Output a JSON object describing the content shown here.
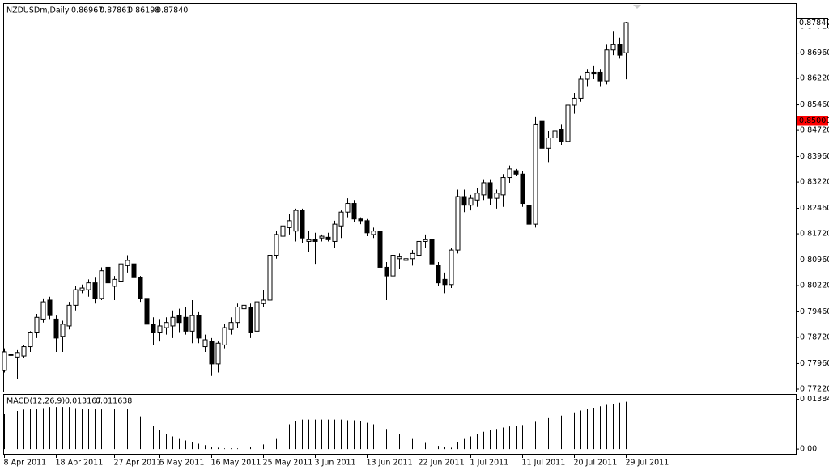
{
  "header": {
    "symbol": "NZDUSDm,Daily",
    "values": [
      "0.86967",
      "0.87861",
      "0.86198",
      "0.87840"
    ]
  },
  "chart_data": [
    {
      "type": "candlestick",
      "categories": [
        "8 Apr 2011",
        null,
        null,
        null,
        null,
        null,
        null,
        null,
        "18 Apr 2011",
        null,
        null,
        null,
        null,
        null,
        null,
        null,
        null,
        "27 Apr 2011",
        null,
        null,
        null,
        null,
        null,
        null,
        "6 May 2011",
        null,
        null,
        null,
        null,
        null,
        null,
        null,
        "16 May 2011",
        null,
        null,
        null,
        null,
        null,
        null,
        null,
        "25 May 2011",
        null,
        null,
        null,
        null,
        null,
        null,
        null,
        "3 Jun 2011",
        null,
        null,
        null,
        null,
        null,
        null,
        null,
        "13 Jun 2011",
        null,
        null,
        null,
        null,
        null,
        null,
        null,
        "22 Jun 2011",
        null,
        null,
        null,
        null,
        null,
        null,
        null,
        "1 Jul 2011",
        null,
        null,
        null,
        null,
        null,
        null,
        null,
        "11 Jul 2011",
        null,
        null,
        null,
        null,
        null,
        null,
        null,
        "20 Jul 2011",
        null,
        null,
        null,
        null,
        null,
        null,
        null,
        "29 Jul 2011"
      ],
      "open": [
        0.7776,
        0.782,
        0.7815,
        0.7818,
        0.7845,
        0.7885,
        0.7925,
        0.798,
        0.7925,
        0.7875,
        0.7905,
        0.7965,
        0.8008,
        0.801,
        0.803,
        0.7985,
        0.8075,
        0.802,
        0.8035,
        0.808,
        0.8085,
        0.8045,
        0.7985,
        0.791,
        0.7885,
        0.79,
        0.7905,
        0.7935,
        0.793,
        0.789,
        0.7935,
        0.7845,
        0.786,
        0.7795,
        0.785,
        0.7895,
        0.7915,
        0.7955,
        0.796,
        0.789,
        0.797,
        0.798,
        0.811,
        0.8165,
        0.819,
        0.818,
        0.824,
        0.815,
        0.8155,
        0.816,
        0.8162,
        0.815,
        0.8195,
        0.8235,
        0.826,
        0.8215,
        0.821,
        0.817,
        0.818,
        0.8075,
        0.805,
        0.81,
        0.8095,
        0.81,
        0.811,
        0.815,
        0.8155,
        0.808,
        0.804,
        0.8025,
        0.8125,
        0.828,
        0.8255,
        0.827,
        0.8285,
        0.832,
        0.8275,
        0.8285,
        0.8335,
        0.8355,
        0.8345,
        0.8255,
        0.82,
        0.85,
        0.842,
        0.845,
        0.8475,
        0.844,
        0.8545,
        0.8565,
        0.862,
        0.864,
        0.864,
        0.8615,
        0.8705,
        0.872,
        0.86967
      ],
      "high": [
        0.784,
        0.7826,
        0.7835,
        0.785,
        0.789,
        0.794,
        0.7985,
        0.799,
        0.7935,
        0.792,
        0.7975,
        0.802,
        0.8025,
        0.804,
        0.8045,
        0.8075,
        0.8095,
        0.805,
        0.8095,
        0.811,
        0.8095,
        0.805,
        0.7995,
        0.793,
        0.7925,
        0.793,
        0.795,
        0.7955,
        0.796,
        0.798,
        0.7945,
        0.788,
        0.787,
        0.786,
        0.791,
        0.793,
        0.797,
        0.7975,
        0.797,
        0.799,
        0.801,
        0.812,
        0.818,
        0.821,
        0.823,
        0.8245,
        0.8245,
        0.818,
        0.8175,
        0.817,
        0.8175,
        0.821,
        0.824,
        0.8275,
        0.827,
        0.822,
        0.8215,
        0.819,
        0.8185,
        0.809,
        0.8125,
        0.8115,
        0.811,
        0.8125,
        0.816,
        0.817,
        0.819,
        0.809,
        0.806,
        0.813,
        0.83,
        0.83,
        0.8285,
        0.8305,
        0.833,
        0.833,
        0.83,
        0.8345,
        0.837,
        0.836,
        0.8355,
        0.826,
        0.851,
        0.8515,
        0.847,
        0.8485,
        0.849,
        0.856,
        0.858,
        0.863,
        0.865,
        0.866,
        0.865,
        0.872,
        0.876,
        0.874,
        0.87861
      ],
      "low": [
        0.777,
        0.7812,
        0.7752,
        0.7812,
        0.783,
        0.787,
        0.7915,
        0.7925,
        0.783,
        0.783,
        0.7895,
        0.795,
        0.8,
        0.799,
        0.797,
        0.798,
        0.802,
        0.798,
        0.801,
        0.806,
        0.8035,
        0.7975,
        0.79,
        0.785,
        0.786,
        0.788,
        0.787,
        0.7885,
        0.788,
        0.7855,
        0.7855,
        0.783,
        0.776,
        0.777,
        0.784,
        0.788,
        0.79,
        0.792,
        0.787,
        0.788,
        0.796,
        0.7975,
        0.81,
        0.814,
        0.817,
        0.815,
        0.8145,
        0.812,
        0.8085,
        0.815,
        0.815,
        0.813,
        0.816,
        0.822,
        0.8205,
        0.82,
        0.8165,
        0.816,
        0.806,
        0.798,
        0.803,
        0.807,
        0.808,
        0.808,
        0.805,
        0.813,
        0.807,
        0.802,
        0.8,
        0.8015,
        0.8115,
        0.8235,
        0.824,
        0.825,
        0.827,
        0.8255,
        0.8245,
        0.825,
        0.832,
        0.834,
        0.825,
        0.812,
        0.819,
        0.84,
        0.838,
        0.842,
        0.843,
        0.843,
        0.852,
        0.8555,
        0.86,
        0.862,
        0.86,
        0.8605,
        0.869,
        0.868,
        0.86198
      ],
      "close": [
        0.783,
        0.7822,
        0.7828,
        0.7845,
        0.7885,
        0.793,
        0.7975,
        0.7935,
        0.787,
        0.791,
        0.7965,
        0.801,
        0.8015,
        0.803,
        0.7985,
        0.8065,
        0.803,
        0.804,
        0.8085,
        0.8095,
        0.8045,
        0.7985,
        0.791,
        0.7885,
        0.7905,
        0.7915,
        0.793,
        0.7915,
        0.789,
        0.7935,
        0.787,
        0.7865,
        0.7795,
        0.7855,
        0.79,
        0.7915,
        0.796,
        0.7965,
        0.7885,
        0.7975,
        0.798,
        0.811,
        0.817,
        0.8195,
        0.821,
        0.824,
        0.816,
        0.8155,
        0.815,
        0.8165,
        0.8155,
        0.82,
        0.8235,
        0.826,
        0.8215,
        0.821,
        0.8175,
        0.818,
        0.8075,
        0.805,
        0.811,
        0.8105,
        0.81,
        0.8115,
        0.815,
        0.8155,
        0.8085,
        0.803,
        0.8025,
        0.8125,
        0.828,
        0.8255,
        0.8275,
        0.829,
        0.832,
        0.8275,
        0.829,
        0.8335,
        0.836,
        0.8345,
        0.826,
        0.82,
        0.849,
        0.842,
        0.845,
        0.847,
        0.844,
        0.8545,
        0.8565,
        0.862,
        0.864,
        0.8635,
        0.8615,
        0.8705,
        0.872,
        0.869,
        0.8784
      ],
      "up_color": "#ffffff",
      "down_color": "#000000",
      "ylim": [
        0.7715,
        0.8838
      ],
      "yticks": [
        {
          "value": 0.8772,
          "label": "0.87720"
        },
        {
          "value": 0.8696,
          "label": "0.86960"
        },
        {
          "value": 0.8622,
          "label": "0.86220"
        },
        {
          "value": 0.8546,
          "label": "0.85460"
        },
        {
          "value": 0.8472,
          "label": "0.84720"
        },
        {
          "value": 0.8396,
          "label": "0.83960"
        },
        {
          "value": 0.8322,
          "label": "0.83220"
        },
        {
          "value": 0.8246,
          "label": "0.82460"
        },
        {
          "value": 0.8172,
          "label": "0.81720"
        },
        {
          "value": 0.8096,
          "label": "0.80960"
        },
        {
          "value": 0.8022,
          "label": "0.80220"
        },
        {
          "value": 0.7946,
          "label": "0.79460"
        },
        {
          "value": 0.7872,
          "label": "0.78720"
        },
        {
          "value": 0.7796,
          "label": "0.77960"
        },
        {
          "value": 0.7722,
          "label": "0.77220"
        }
      ],
      "current_price": {
        "value": 0.8784,
        "label": "0.87840"
      },
      "hline": {
        "value": 0.85,
        "label": "0.85000",
        "color": "#ff0000"
      }
    },
    {
      "type": "bar",
      "title": "MACD(12,26,9)",
      "readouts": [
        "0.013167",
        "0.011638"
      ],
      "color": "#000000",
      "values": [
        0.0097,
        0.0102,
        0.0106,
        0.011,
        0.0112,
        0.0112,
        0.0114,
        0.0117,
        0.0117,
        0.0117,
        0.0117,
        0.0114,
        0.0112,
        0.0112,
        0.0112,
        0.0112,
        0.0112,
        0.0112,
        0.0112,
        0.0112,
        0.0102,
        0.0091,
        0.0078,
        0.0065,
        0.0052,
        0.0043,
        0.0035,
        0.0028,
        0.0024,
        0.0019,
        0.0015,
        0.0011,
        0.0006,
        0.0004,
        0.0002,
        0.0002,
        0.0002,
        0.0004,
        0.0006,
        0.0009,
        0.0013,
        0.0019,
        0.0028,
        0.0058,
        0.0069,
        0.0078,
        0.0082,
        0.0082,
        0.0082,
        0.0082,
        0.0082,
        0.0082,
        0.0082,
        0.008,
        0.008,
        0.0078,
        0.0073,
        0.0069,
        0.0065,
        0.0056,
        0.0048,
        0.0041,
        0.0035,
        0.0028,
        0.0022,
        0.0017,
        0.0013,
        0.0009,
        0.0006,
        0.0004,
        0.0019,
        0.0028,
        0.0035,
        0.0041,
        0.0048,
        0.0052,
        0.0056,
        0.006,
        0.0063,
        0.0065,
        0.0067,
        0.0067,
        0.0076,
        0.0082,
        0.0086,
        0.0089,
        0.0093,
        0.0097,
        0.0102,
        0.0107,
        0.0111,
        0.0115,
        0.0119,
        0.0123,
        0.0126,
        0.0129,
        0.013167
      ],
      "ylim": [
        -0.0011,
        0.0151
      ],
      "yticks": [
        0.013844,
        {
          "value": 0,
          "label": "0.00"
        }
      ]
    }
  ]
}
